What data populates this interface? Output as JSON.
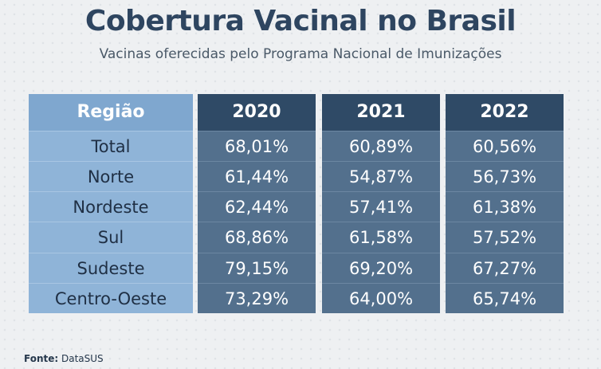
{
  "title": "Cobertura Vacinal no Brasil",
  "subtitle": "Vacinas oferecidas pelo Programa Nacional de Imunizações",
  "source": {
    "label": "Fonte:",
    "value": "DataSUS"
  },
  "colors": {
    "title": "#2e4560",
    "region_column": "#8fb4d8",
    "region_header": "#7fa7cf",
    "year_header": "#2f4a66",
    "year_cells": "#53708d"
  },
  "chart_data": {
    "type": "table",
    "columns": [
      "Região",
      "2020",
      "2021",
      "2022"
    ],
    "rows": [
      [
        "Total",
        "68,01%",
        "60,89%",
        "60,56%"
      ],
      [
        "Norte",
        "61,44%",
        "54,87%",
        "56,73%"
      ],
      [
        "Nordeste",
        "62,44%",
        "57,41%",
        "61,38%"
      ],
      [
        "Sul",
        "68,86%",
        "61,58%",
        "57,52%"
      ],
      [
        "Sudeste",
        "79,15%",
        "69,20%",
        "67,27%"
      ],
      [
        "Centro-Oeste",
        "73,29%",
        "64,00%",
        "65,74%"
      ]
    ]
  }
}
